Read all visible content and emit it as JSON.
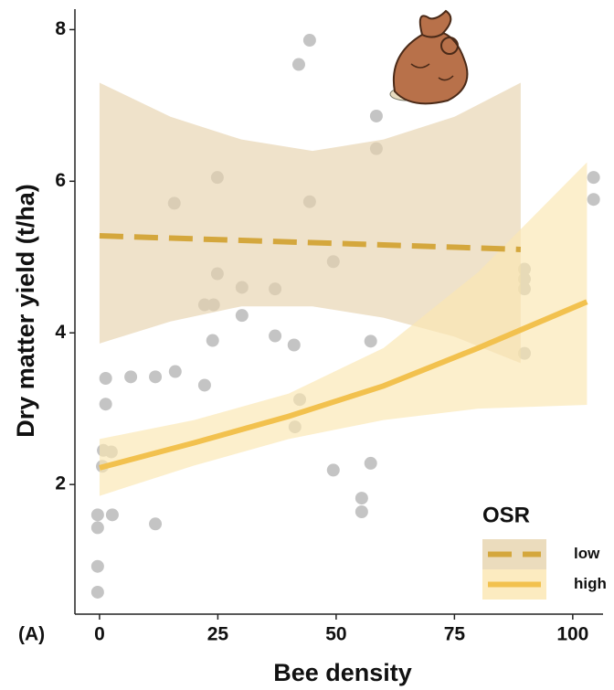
{
  "chart_data": {
    "type": "scatter",
    "xlabel": "Bee density",
    "ylabel": "Dry matter yield (t/ha)",
    "panel_label": "(A)",
    "xlim": [
      -5.2,
      106.4
    ],
    "ylim": [
      0.29,
      8.27
    ],
    "xticks": [
      0,
      25,
      50,
      75,
      100
    ],
    "yticks": [
      2,
      4,
      6,
      8
    ],
    "points": {
      "color": "#c4c4c4",
      "x": [
        -0.4,
        -0.4,
        -0.4,
        -0.4,
        2.7,
        0.8,
        2.5,
        0.6,
        1.3,
        1.3,
        6.6,
        11.8,
        11.8,
        16,
        15.8,
        22.2,
        22.2,
        24.1,
        23.9,
        24.9,
        24.9,
        30.1,
        30.1,
        37.1,
        37.1,
        41.1,
        41.3,
        42.3,
        42.1,
        44.4,
        44.4,
        49.4,
        49.4,
        55.4,
        55.4,
        57.3,
        57.3,
        58.5,
        58.5,
        89.8,
        89.8,
        89.8,
        89.8,
        104.4,
        104.4
      ],
      "values": [
        0.58,
        0.92,
        1.6,
        1.43,
        1.6,
        2.45,
        2.43,
        2.24,
        3.06,
        3.4,
        3.42,
        1.48,
        3.42,
        3.49,
        5.71,
        3.31,
        4.37,
        4.37,
        3.9,
        6.05,
        4.78,
        4.6,
        4.23,
        4.58,
        3.96,
        3.84,
        2.76,
        3.12,
        7.54,
        7.86,
        5.73,
        4.94,
        2.19,
        1.82,
        1.64,
        2.28,
        3.89,
        6.86,
        6.43,
        4.84,
        4.71,
        4.58,
        3.73,
        6.05,
        5.76
      ]
    },
    "legend": {
      "title": "OSR",
      "position": "lower right"
    },
    "series": [
      {
        "name": "low",
        "color": "#d4a73d",
        "band_color": "#e6d3ad",
        "style": "dashed",
        "x": [
          0,
          15,
          30,
          45,
          60,
          75,
          89
        ],
        "values": [
          5.28,
          5.25,
          5.22,
          5.19,
          5.16,
          5.13,
          5.1
        ],
        "upper": [
          7.3,
          6.85,
          6.55,
          6.4,
          6.55,
          6.85,
          7.3
        ],
        "lower": [
          3.86,
          4.15,
          4.35,
          4.35,
          4.2,
          3.95,
          3.6
        ]
      },
      {
        "name": "high",
        "color": "#f2c14e",
        "band_color": "#fbe6b0",
        "style": "solid",
        "x": [
          0,
          20,
          40,
          60,
          80,
          103
        ],
        "values": [
          2.22,
          2.55,
          2.9,
          3.3,
          3.8,
          4.41
        ],
        "upper": [
          2.6,
          2.85,
          3.2,
          3.8,
          4.8,
          6.25
        ],
        "lower": [
          1.85,
          2.25,
          2.6,
          2.85,
          3.0,
          3.05
        ]
      }
    ]
  }
}
